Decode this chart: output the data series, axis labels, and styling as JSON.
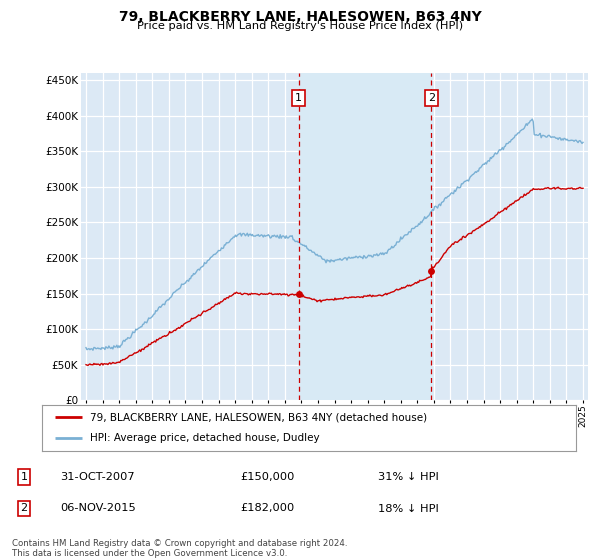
{
  "title": "79, BLACKBERRY LANE, HALESOWEN, B63 4NY",
  "subtitle": "Price paid vs. HM Land Registry's House Price Index (HPI)",
  "hpi_color": "#7ab0d4",
  "price_color": "#cc0000",
  "vline_color": "#cc0000",
  "shade_color": "#d8eaf5",
  "background_color": "#ffffff",
  "plot_bg_color": "#dce9f5",
  "grid_color": "#ffffff",
  "ylim": [
    0,
    460000
  ],
  "yticks": [
    0,
    50000,
    100000,
    150000,
    200000,
    250000,
    300000,
    350000,
    400000,
    450000
  ],
  "xlim_start": 1994.7,
  "xlim_end": 2025.3,
  "sale1_year": 2007.83,
  "sale1_price": 150000,
  "sale1_label": "1",
  "sale2_year": 2015.85,
  "sale2_price": 182000,
  "sale2_label": "2",
  "legend_entries": [
    {
      "label": "79, BLACKBERRY LANE, HALESOWEN, B63 4NY (detached house)",
      "color": "#cc0000"
    },
    {
      "label": "HPI: Average price, detached house, Dudley",
      "color": "#7ab0d4"
    }
  ],
  "table_rows": [
    {
      "num": "1",
      "date": "31-OCT-2007",
      "price": "£150,000",
      "hpi": "31% ↓ HPI"
    },
    {
      "num": "2",
      "date": "06-NOV-2015",
      "price": "£182,000",
      "hpi": "18% ↓ HPI"
    }
  ],
  "footnote": "Contains HM Land Registry data © Crown copyright and database right 2024.\nThis data is licensed under the Open Government Licence v3.0.",
  "year_start": 1995,
  "year_end": 2025
}
